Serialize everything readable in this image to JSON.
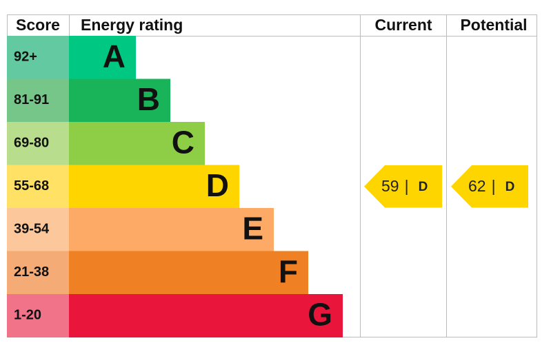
{
  "headers": {
    "score": "Score",
    "rating": "Energy rating",
    "current": "Current",
    "potential": "Potential"
  },
  "bands": [
    {
      "score": "92+",
      "letter": "A",
      "color": "#00c781",
      "score_color": "#62c9a0"
    },
    {
      "score": "81-91",
      "letter": "B",
      "color": "#19b459",
      "score_color": "#76c68a"
    },
    {
      "score": "69-80",
      "letter": "C",
      "color": "#8dce46",
      "score_color": "#b8dd8c"
    },
    {
      "score": "55-68",
      "letter": "D",
      "color": "#ffd500",
      "score_color": "#ffe265"
    },
    {
      "score": "39-54",
      "letter": "E",
      "color": "#fcaa65",
      "score_color": "#fdc79c"
    },
    {
      "score": "21-38",
      "letter": "F",
      "color": "#ef8023",
      "score_color": "#f4ab76"
    },
    {
      "score": "1-20",
      "letter": "G",
      "color": "#e9153b",
      "score_color": "#f0738a"
    }
  ],
  "current": {
    "value": 59,
    "separator": "|",
    "letter": "D"
  },
  "potential": {
    "value": 62,
    "separator": "|",
    "letter": "D"
  }
}
